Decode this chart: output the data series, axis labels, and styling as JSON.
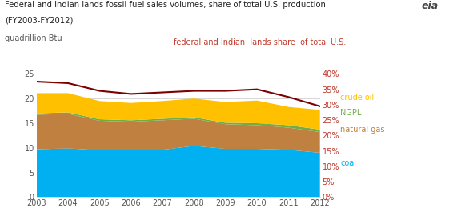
{
  "years": [
    2003,
    2004,
    2005,
    2006,
    2007,
    2008,
    2009,
    2010,
    2011,
    2012
  ],
  "coal": [
    9.7,
    9.9,
    9.5,
    9.5,
    9.6,
    10.4,
    9.8,
    9.8,
    9.6,
    9.0
  ],
  "natural_gas": [
    7.0,
    7.0,
    6.0,
    5.8,
    6.0,
    5.5,
    5.0,
    4.8,
    4.5,
    4.2
  ],
  "ngpl": [
    0.3,
    0.3,
    0.3,
    0.3,
    0.3,
    0.3,
    0.3,
    0.4,
    0.5,
    0.5
  ],
  "crude_oil": [
    4.1,
    3.9,
    3.7,
    3.5,
    3.6,
    3.8,
    4.2,
    4.6,
    3.7,
    4.0
  ],
  "share_line": [
    37.5,
    37.0,
    34.5,
    33.5,
    34.0,
    34.5,
    34.5,
    35.0,
    32.5,
    29.5
  ],
  "coal_color": "#00b0f0",
  "natural_gas_color": "#bf8040",
  "ngpl_color": "#70ad47",
  "crude_oil_color": "#ffc000",
  "share_line_color": "#7b0000",
  "title_line1": "Federal and Indian lands fossil fuel sales volumes, share of total U.S. production",
  "title_line2": "(FY2003-FY2012)",
  "ylabel_left": "quadrillion Btu",
  "ylim_left": [
    0,
    25
  ],
  "ylim_right": [
    0,
    40
  ],
  "yticks_left": [
    0,
    5,
    10,
    15,
    20,
    25
  ],
  "yticks_right": [
    0,
    5,
    10,
    15,
    20,
    25,
    30,
    35,
    40
  ],
  "ytick_labels_right": [
    "0%",
    "5%",
    "10%",
    "15%",
    "20%",
    "25%",
    "30%",
    "35%",
    "40%"
  ],
  "bg_color": "#ffffff",
  "grid_color": "#c8c8c8",
  "share_label_color": "#c0392b",
  "crude_oil_label_color": "#ffc000",
  "ngpl_label_color": "#70ad47",
  "natural_gas_label_color": "#bf8040",
  "coal_label_color": "#00b0f0",
  "tick_color": "#555555",
  "title_color": "#222222"
}
